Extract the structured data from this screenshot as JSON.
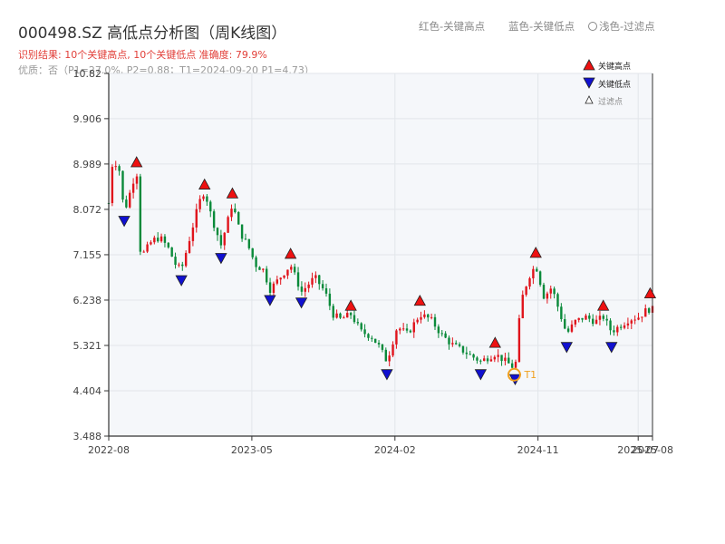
{
  "header": {
    "title": "000498.SZ 高低点分析图（周K线图）",
    "result_line": "识别结果: 10个关键高点, 10个关键低点   准确度: 79.9%",
    "quality_line": "优质：否（P1=27.0%, P2=0.88；T1=2024-09-20 P1=4.73）",
    "legend_red": "红色-关键高点",
    "legend_blue": "蓝色-关键低点",
    "legend_light": "浅色-过滤点"
  },
  "colors": {
    "up": "#e0141c",
    "down": "#0a8a3a",
    "high_marker": "#ee1111",
    "low_marker": "#1010d0",
    "t1_ring": "#f0a020",
    "plot_bg": "#f5f7fa",
    "grid": "#e2e6ea"
  },
  "chart_data": {
    "type": "candlestick",
    "title": "000498.SZ 高低点分析图（周K线图）",
    "y_ticks": [
      "3.488",
      "4.404",
      "5.321",
      "6.238",
      "7.155",
      "8.072",
      "8.989",
      "9.906",
      "10.82"
    ],
    "ylim": [
      3.488,
      10.82
    ],
    "x_ticks": [
      {
        "label": "2022-08",
        "t": 0
      },
      {
        "label": "2023-05",
        "t": 0.2778
      },
      {
        "label": "2024-02",
        "t": 0.5556
      },
      {
        "label": "2024-11",
        "t": 0.8333
      },
      {
        "label": "2025-07",
        "t": 1.0278
      },
      {
        "label": "2025-08",
        "t": 1.0556
      }
    ],
    "xlim": [
      0,
      1.0556
    ],
    "grid": true,
    "legend_position": "top-right",
    "legend": [
      "关键高点",
      "关键低点",
      "过滤点"
    ],
    "t1_label": "T1",
    "t1": {
      "t": 0.7872,
      "value": 4.73
    },
    "key_highs": [
      {
        "t": 0.054,
        "value": 8.95
      },
      {
        "t": 0.186,
        "value": 8.5
      },
      {
        "t": 0.24,
        "value": 8.32
      },
      {
        "t": 0.353,
        "value": 7.1
      },
      {
        "t": 0.47,
        "value": 6.05
      },
      {
        "t": 0.604,
        "value": 6.15
      },
      {
        "t": 0.75,
        "value": 5.3
      },
      {
        "t": 0.829,
        "value": 7.12
      },
      {
        "t": 0.96,
        "value": 6.05
      },
      {
        "t": 1.051,
        "value": 6.3
      }
    ],
    "key_lows": [
      {
        "t": 0.03,
        "value": 7.95
      },
      {
        "t": 0.141,
        "value": 6.75
      },
      {
        "t": 0.218,
        "value": 7.2
      },
      {
        "t": 0.313,
        "value": 6.35
      },
      {
        "t": 0.374,
        "value": 6.3
      },
      {
        "t": 0.54,
        "value": 4.85
      },
      {
        "t": 0.722,
        "value": 4.85
      },
      {
        "t": 0.789,
        "value": 4.75
      },
      {
        "t": 0.889,
        "value": 5.4
      },
      {
        "t": 0.976,
        "value": 5.4
      }
    ],
    "close_path": [
      [
        0.0,
        8.2
      ],
      [
        0.008,
        9.1
      ],
      [
        0.02,
        8.9
      ],
      [
        0.03,
        8.0
      ],
      [
        0.045,
        8.55
      ],
      [
        0.054,
        8.9
      ],
      [
        0.062,
        7.1
      ],
      [
        0.085,
        7.45
      ],
      [
        0.1,
        7.5
      ],
      [
        0.115,
        7.3
      ],
      [
        0.13,
        6.95
      ],
      [
        0.141,
        6.85
      ],
      [
        0.16,
        7.6
      ],
      [
        0.175,
        8.2
      ],
      [
        0.186,
        8.45
      ],
      [
        0.2,
        7.9
      ],
      [
        0.218,
        7.35
      ],
      [
        0.23,
        7.8
      ],
      [
        0.24,
        8.2
      ],
      [
        0.255,
        7.6
      ],
      [
        0.27,
        7.35
      ],
      [
        0.285,
        6.95
      ],
      [
        0.3,
        6.85
      ],
      [
        0.313,
        6.45
      ],
      [
        0.333,
        6.7
      ],
      [
        0.353,
        6.95
      ],
      [
        0.374,
        6.4
      ],
      [
        0.4,
        6.7
      ],
      [
        0.42,
        6.4
      ],
      [
        0.435,
        5.95
      ],
      [
        0.45,
        5.85
      ],
      [
        0.47,
        5.95
      ],
      [
        0.49,
        5.6
      ],
      [
        0.51,
        5.5
      ],
      [
        0.525,
        5.3
      ],
      [
        0.54,
        5.0
      ],
      [
        0.56,
        5.7
      ],
      [
        0.58,
        5.55
      ],
      [
        0.604,
        5.95
      ],
      [
        0.625,
        5.85
      ],
      [
        0.645,
        5.55
      ],
      [
        0.665,
        5.35
      ],
      [
        0.69,
        5.2
      ],
      [
        0.705,
        5.1
      ],
      [
        0.722,
        5.0
      ],
      [
        0.75,
        5.15
      ],
      [
        0.77,
        5.0
      ],
      [
        0.789,
        4.85
      ],
      [
        0.8,
        6.2
      ],
      [
        0.815,
        6.7
      ],
      [
        0.829,
        6.95
      ],
      [
        0.845,
        6.3
      ],
      [
        0.86,
        6.5
      ],
      [
        0.875,
        6.0
      ],
      [
        0.889,
        5.55
      ],
      [
        0.905,
        5.8
      ],
      [
        0.925,
        5.9
      ],
      [
        0.945,
        5.8
      ],
      [
        0.96,
        5.9
      ],
      [
        0.976,
        5.6
      ],
      [
        0.99,
        5.7
      ],
      [
        1.01,
        5.85
      ],
      [
        1.03,
        5.9
      ],
      [
        1.045,
        6.05
      ],
      [
        1.056,
        6.05
      ]
    ]
  }
}
